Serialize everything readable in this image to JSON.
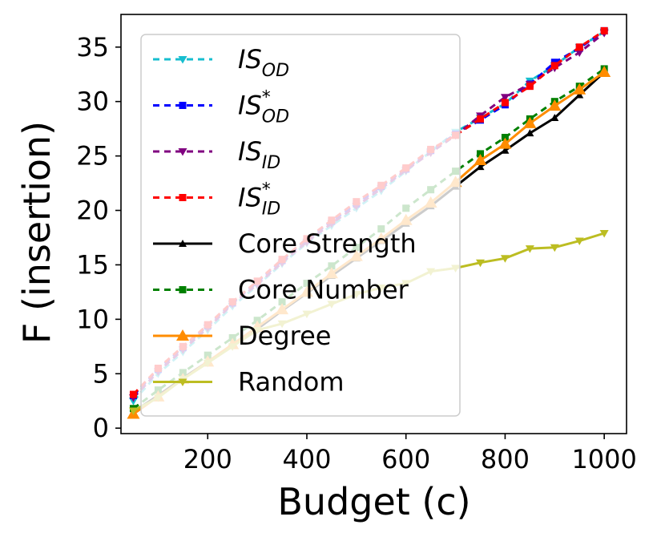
{
  "chart_data": {
    "type": "line",
    "title": "",
    "xlabel": "Budget (c)",
    "ylabel": "F (insertion)",
    "xlim": [
      25,
      1045
    ],
    "ylim": [
      -0.5,
      38
    ],
    "xticks": [
      200,
      400,
      600,
      800,
      1000
    ],
    "yticks": [
      0,
      5,
      10,
      15,
      20,
      25,
      30,
      35
    ],
    "grid": false,
    "legend_position": "top-left",
    "x": [
      50,
      100,
      150,
      200,
      250,
      300,
      350,
      400,
      450,
      500,
      550,
      600,
      650,
      700,
      750,
      800,
      850,
      900,
      950,
      1000
    ],
    "series": [
      {
        "name": "IS_OD",
        "label_main": "IS",
        "label_sub": "OD",
        "label_sup": "",
        "color": "#17becf",
        "dash": "8,6",
        "marker": "tri-down",
        "values": [
          2.5,
          5.0,
          7.0,
          9.0,
          11.2,
          13.1,
          15.1,
          17.0,
          18.6,
          20.2,
          21.8,
          23.6,
          25.4,
          27.2,
          28.5,
          29.8,
          31.9,
          33.3,
          35.0,
          36.4
        ]
      },
      {
        "name": "IS*_OD",
        "label_main": "IS",
        "label_sub": "OD",
        "label_sup": "*",
        "color": "#0000ff",
        "dash": "8,6",
        "marker": "square",
        "values": [
          3.0,
          5.4,
          7.4,
          9.4,
          11.5,
          13.4,
          15.4,
          17.3,
          19.0,
          20.6,
          22.2,
          23.8,
          25.5,
          27.0,
          28.3,
          29.7,
          31.6,
          33.6,
          34.9,
          36.5
        ]
      },
      {
        "name": "IS_ID",
        "label_main": "IS",
        "label_sub": "ID",
        "label_sup": "",
        "color": "#800080",
        "dash": "8,6",
        "marker": "tri-down",
        "values": [
          2.8,
          5.2,
          7.2,
          9.2,
          11.4,
          13.2,
          15.2,
          17.1,
          18.8,
          20.4,
          22.0,
          23.7,
          25.3,
          26.9,
          28.7,
          30.4,
          31.6,
          33.1,
          34.5,
          36.3
        ]
      },
      {
        "name": "IS*_ID",
        "label_main": "IS",
        "label_sub": "ID",
        "label_sup": "*",
        "color": "#ff0000",
        "dash": "8,6",
        "marker": "square",
        "values": [
          3.1,
          5.5,
          7.5,
          9.5,
          11.6,
          13.5,
          15.5,
          17.4,
          19.1,
          20.8,
          22.3,
          23.9,
          25.6,
          26.9,
          28.4,
          29.9,
          31.4,
          33.3,
          35.0,
          36.5
        ]
      },
      {
        "name": "Core Strength",
        "label_main": "Core Strength",
        "label_sub": "",
        "label_sup": "",
        "color": "#000000",
        "dash": "",
        "marker": "tri-up",
        "values": [
          1.5,
          3.0,
          4.6,
          6.1,
          7.6,
          9.1,
          10.8,
          12.4,
          14.0,
          15.6,
          17.2,
          18.8,
          20.4,
          22.2,
          24.0,
          25.5,
          27.1,
          28.5,
          30.6,
          32.7
        ]
      },
      {
        "name": "Core Number",
        "label_main": "Core Number",
        "label_sub": "",
        "label_sup": "",
        "color": "#008000",
        "dash": "8,6",
        "marker": "square",
        "values": [
          1.8,
          3.5,
          5.1,
          6.7,
          8.3,
          9.9,
          11.6,
          13.3,
          14.9,
          16.6,
          18.3,
          20.2,
          21.9,
          23.6,
          25.2,
          26.7,
          28.4,
          30.0,
          31.4,
          33.0
        ]
      },
      {
        "name": "Degree",
        "label_main": "Degree",
        "label_sub": "",
        "label_sup": "",
        "color": "#ff8c00",
        "dash": "",
        "marker": "tri-up-large",
        "values": [
          1.3,
          2.9,
          4.5,
          6.1,
          7.7,
          9.3,
          10.9,
          12.5,
          14.2,
          15.8,
          17.4,
          19.1,
          20.7,
          22.6,
          24.6,
          26.1,
          28.0,
          29.6,
          31.1,
          32.7
        ]
      },
      {
        "name": "Random",
        "label_main": "Random",
        "label_sub": "",
        "label_sup": "",
        "color": "#bcbd22",
        "dash": "",
        "marker": "tri-down",
        "values": [
          1.6,
          2.8,
          4.5,
          6.0,
          7.5,
          9.0,
          9.6,
          10.5,
          11.4,
          12.3,
          12.9,
          13.3,
          14.4,
          14.7,
          15.2,
          15.6,
          16.5,
          16.6,
          17.2,
          17.9
        ]
      }
    ]
  }
}
